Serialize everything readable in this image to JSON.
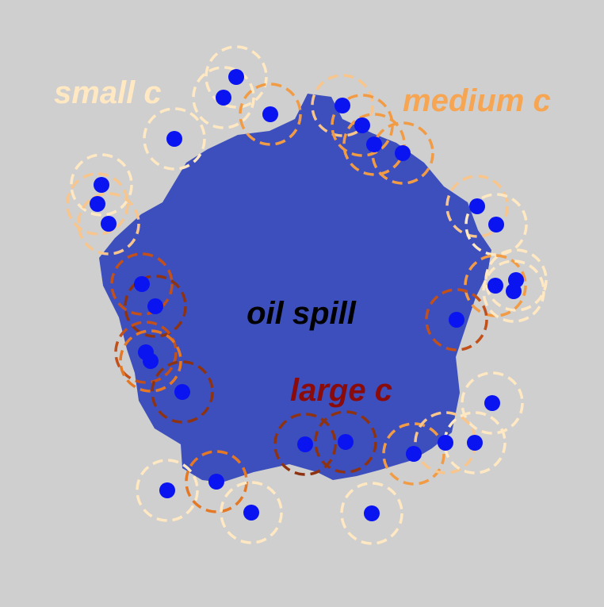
{
  "diagram": {
    "center_label": "oil spill",
    "legend": [
      {
        "key": "small",
        "text": "small c",
        "color": "#ffe8c2"
      },
      {
        "key": "medium",
        "text": "medium c",
        "color": "#f6a552"
      },
      {
        "key": "large",
        "text": "large c",
        "color": "#8b0a0a"
      }
    ],
    "colors": {
      "background": "#cfcfcf",
      "spill": "#3d4fbd",
      "sensor_dot": "#0a14f0",
      "ring_small": "#ffe8c2",
      "ring_mild": "#f8c58c",
      "ring_medium": "#f29b45",
      "ring_medium_dark": "#e57824",
      "ring_large": "#c2501a",
      "ring_very_large": "#8e3312"
    }
  }
}
